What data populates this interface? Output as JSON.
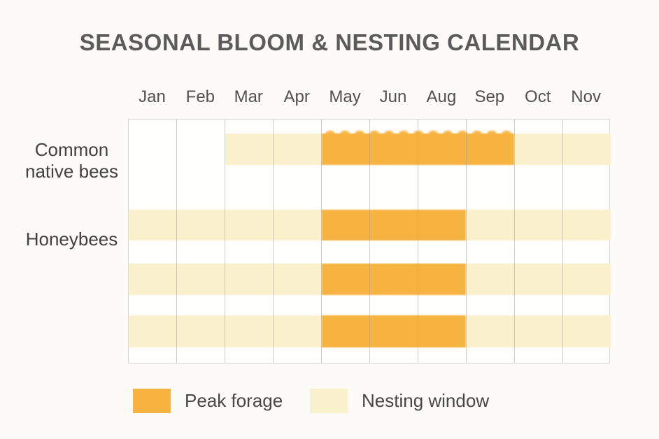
{
  "title": "SEASONAL BLOOM & NESTING CALENDAR",
  "chart_data": {
    "type": "heatmap",
    "title": "SEASONAL BLOOM & NESTING CALENDAR",
    "x_categories": [
      "Jan",
      "Feb",
      "Mar",
      "Apr",
      "May",
      "Jun",
      "Aug",
      "Sep",
      "Oct",
      "Nov"
    ],
    "cell_states": {
      "peak": "Peak forage",
      "nesting": "Nesting window",
      "none": "empty"
    },
    "rows": [
      {
        "label": "Common native bees",
        "cells": [
          "none",
          "none",
          "nesting",
          "nesting",
          "peak",
          "peak",
          "peak",
          "peak",
          "nesting",
          "nesting"
        ]
      },
      {
        "label": "Honeybees",
        "cells": [
          "nesting",
          "nesting",
          "nesting",
          "nesting",
          "peak",
          "peak",
          "peak",
          "nesting",
          "nesting",
          "nesting"
        ]
      },
      {
        "label": "",
        "cells": [
          "nesting",
          "nesting",
          "nesting",
          "nesting",
          "peak",
          "peak",
          "peak",
          "nesting",
          "nesting",
          "nesting"
        ]
      },
      {
        "label": "",
        "cells": [
          "nesting",
          "nesting",
          "nesting",
          "nesting",
          "peak",
          "peak",
          "peak",
          "nesting",
          "nesting",
          "nesting"
        ]
      }
    ],
    "legend": [
      {
        "key": "peak",
        "label": "Peak forage",
        "color": "#F7B340"
      },
      {
        "key": "nesting",
        "label": "Nesting window",
        "color": "#FAF0CC"
      }
    ],
    "colors": {
      "peak": "#F7B340",
      "nesting": "#FAF0CC",
      "grid_line": "#D6D5CF",
      "background": "#FCFBF7",
      "title_text": "#5B5B5B",
      "label_text": "#414141"
    },
    "layout_hints": {
      "legend_position": "bottom",
      "grid": "vertical column lines only, outer border",
      "row_labels_shown": [
        "Common native bees",
        "Honeybees"
      ]
    }
  }
}
